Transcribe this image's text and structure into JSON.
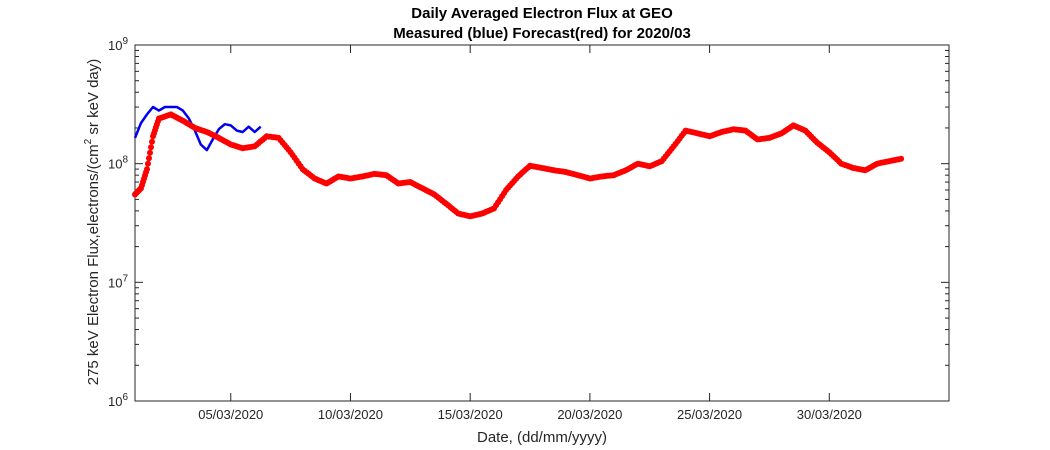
{
  "chart_data": {
    "type": "line",
    "title": "Daily Averaged Electron Flux at GEO",
    "subtitle": "Measured (blue) Forecast(red) for 2020/03",
    "xlabel": "Date, (dd/mm/yyyy)",
    "ylabel": {
      "main": "275 keV Electron Flux,electrons/(cm",
      "sup": "2",
      "tail": " sr keV day)"
    },
    "y_scale": "log",
    "ylim": [
      1000000,
      1000000000
    ],
    "y_ticks": [
      {
        "value": 1000000,
        "base": "10",
        "exp": "6"
      },
      {
        "value": 10000000,
        "base": "10",
        "exp": "7"
      },
      {
        "value": 100000000,
        "base": "10",
        "exp": "8"
      },
      {
        "value": 1000000000,
        "base": "10",
        "exp": "9"
      }
    ],
    "xlim": [
      "2020-03-01",
      "2020-04-04"
    ],
    "x_ticks": [
      {
        "value": "2020-03-05",
        "label": "05/03/2020"
      },
      {
        "value": "2020-03-10",
        "label": "10/03/2020"
      },
      {
        "value": "2020-03-15",
        "label": "15/03/2020"
      },
      {
        "value": "2020-03-20",
        "label": "20/03/2020"
      },
      {
        "value": "2020-03-25",
        "label": "25/03/2020"
      },
      {
        "value": "2020-03-30",
        "label": "30/03/2020"
      }
    ],
    "grid": false,
    "legend": "none",
    "series": [
      {
        "name": "Measured",
        "color": "#0000ee",
        "style": "line",
        "x": [
          "2020-03-01 00:00",
          "2020-03-01 06:00",
          "2020-03-01 12:00",
          "2020-03-01 18:00",
          "2020-03-02 00:00",
          "2020-03-02 06:00",
          "2020-03-02 12:00",
          "2020-03-02 18:00",
          "2020-03-03 00:00",
          "2020-03-03 06:00",
          "2020-03-03 12:00",
          "2020-03-03 18:00",
          "2020-03-04 00:00",
          "2020-03-04 06:00",
          "2020-03-04 12:00",
          "2020-03-04 18:00",
          "2020-03-05 00:00",
          "2020-03-05 06:00",
          "2020-03-05 12:00",
          "2020-03-05 18:00",
          "2020-03-06 00:00",
          "2020-03-06 06:00"
        ],
        "y": [
          165000000,
          220000000,
          260000000,
          300000000,
          280000000,
          300000000,
          300000000,
          300000000,
          280000000,
          240000000,
          190000000,
          145000000,
          130000000,
          160000000,
          195000000,
          215000000,
          210000000,
          190000000,
          185000000,
          205000000,
          185000000,
          205000000
        ]
      },
      {
        "name": "Forecast",
        "color": "#ff0000",
        "style": "dots",
        "x": [
          "2020-03-01 00:00",
          "2020-03-01 06:00",
          "2020-03-01 12:00",
          "2020-03-01 18:00",
          "2020-03-02 00:00",
          "2020-03-02 12:00",
          "2020-03-03 00:00",
          "2020-03-03 12:00",
          "2020-03-04 00:00",
          "2020-03-04 12:00",
          "2020-03-05 00:00",
          "2020-03-05 12:00",
          "2020-03-06 00:00",
          "2020-03-06 12:00",
          "2020-03-07 00:00",
          "2020-03-07 12:00",
          "2020-03-08 00:00",
          "2020-03-08 12:00",
          "2020-03-09 00:00",
          "2020-03-09 12:00",
          "2020-03-10 00:00",
          "2020-03-10 12:00",
          "2020-03-11 00:00",
          "2020-03-11 12:00",
          "2020-03-12 00:00",
          "2020-03-12 12:00",
          "2020-03-13 00:00",
          "2020-03-13 12:00",
          "2020-03-14 00:00",
          "2020-03-14 12:00",
          "2020-03-15 00:00",
          "2020-03-15 12:00",
          "2020-03-16 00:00",
          "2020-03-16 12:00",
          "2020-03-17 00:00",
          "2020-03-17 12:00",
          "2020-03-18 00:00",
          "2020-03-18 12:00",
          "2020-03-19 00:00",
          "2020-03-19 12:00",
          "2020-03-20 00:00",
          "2020-03-20 12:00",
          "2020-03-21 00:00",
          "2020-03-21 12:00",
          "2020-03-22 00:00",
          "2020-03-22 12:00",
          "2020-03-23 00:00",
          "2020-03-23 12:00",
          "2020-03-24 00:00",
          "2020-03-24 12:00",
          "2020-03-25 00:00",
          "2020-03-25 12:00",
          "2020-03-26 00:00",
          "2020-03-26 12:00",
          "2020-03-27 00:00",
          "2020-03-27 12:00",
          "2020-03-28 00:00",
          "2020-03-28 12:00",
          "2020-03-29 00:00",
          "2020-03-29 12:00",
          "2020-03-30 00:00",
          "2020-03-30 12:00",
          "2020-03-31 00:00",
          "2020-03-31 12:00",
          "2020-04-01 00:00",
          "2020-04-01 12:00",
          "2020-04-02 00:00"
        ],
        "y": [
          55000000,
          62000000,
          90000000,
          170000000,
          240000000,
          260000000,
          230000000,
          200000000,
          185000000,
          165000000,
          145000000,
          135000000,
          140000000,
          170000000,
          165000000,
          125000000,
          90000000,
          75000000,
          68000000,
          78000000,
          75000000,
          78000000,
          82000000,
          80000000,
          68000000,
          70000000,
          62000000,
          55000000,
          46000000,
          38000000,
          36000000,
          38000000,
          42000000,
          60000000,
          78000000,
          96000000,
          92000000,
          88000000,
          85000000,
          80000000,
          75000000,
          78000000,
          80000000,
          88000000,
          100000000,
          95000000,
          105000000,
          140000000,
          190000000,
          180000000,
          170000000,
          185000000,
          195000000,
          190000000,
          160000000,
          165000000,
          180000000,
          210000000,
          190000000,
          150000000,
          125000000,
          100000000,
          92000000,
          88000000,
          100000000,
          105000000,
          110000000
        ]
      }
    ]
  }
}
